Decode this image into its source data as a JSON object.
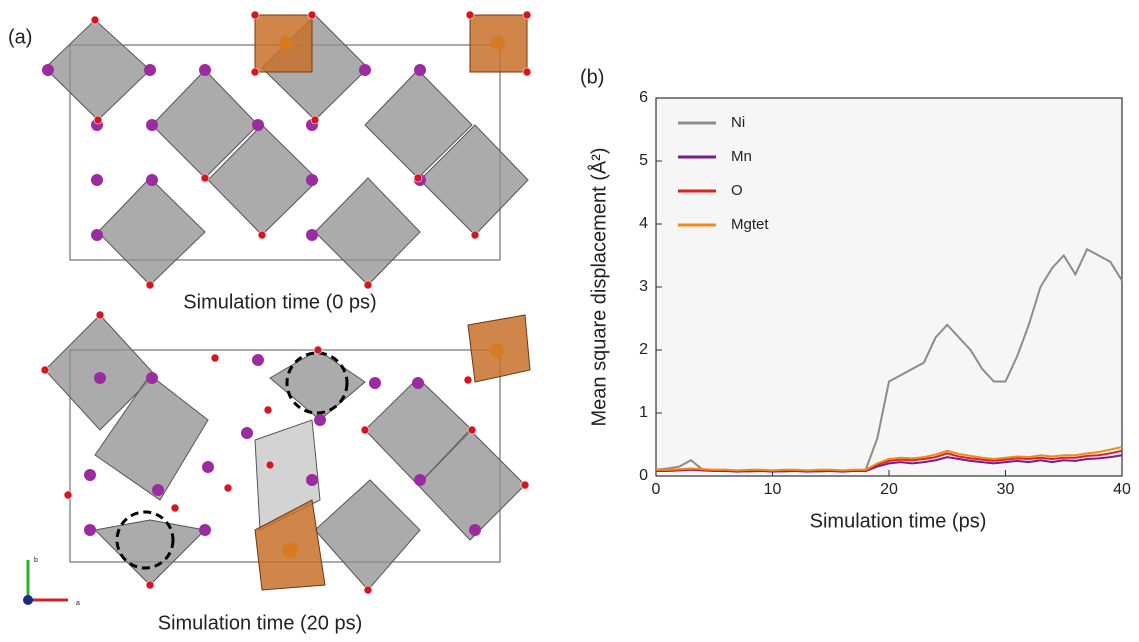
{
  "panel_a": {
    "label": "(a)",
    "captions": [
      "Simulation time (0 ps)",
      "Simulation time (20 ps)"
    ],
    "axes": [
      "b",
      "a"
    ]
  },
  "panel_b_label": "(b)",
  "chart_data": {
    "type": "line",
    "xlabel": "Simulation time (ps)",
    "ylabel": "Mean square displacement (Å²)",
    "x": [
      0,
      1,
      2,
      3,
      4,
      5,
      6,
      7,
      8,
      9,
      10,
      11,
      12,
      13,
      14,
      15,
      16,
      17,
      18,
      19,
      20,
      21,
      22,
      23,
      24,
      25,
      26,
      27,
      28,
      29,
      30,
      31,
      32,
      33,
      34,
      35,
      36,
      37,
      38,
      39,
      40
    ],
    "xlim": [
      0,
      40
    ],
    "xticks": [
      0,
      10,
      20,
      30,
      40
    ],
    "ylim": [
      0,
      6
    ],
    "yticks": [
      0,
      1,
      2,
      3,
      4,
      5,
      6
    ],
    "legend": "upper left",
    "series": [
      {
        "name": "Ni",
        "color": "#8c8c8c",
        "values": [
          0.1,
          0.12,
          0.15,
          0.25,
          0.1,
          0.09,
          0.08,
          0.08,
          0.07,
          0.08,
          0.08,
          0.07,
          0.08,
          0.08,
          0.07,
          0.08,
          0.08,
          0.09,
          0.1,
          0.6,
          1.5,
          1.6,
          1.7,
          1.8,
          2.2,
          2.4,
          2.2,
          2.0,
          1.7,
          1.5,
          1.5,
          1.9,
          2.4,
          3.0,
          3.3,
          3.5,
          3.2,
          3.6,
          3.5,
          3.4,
          3.1
        ]
      },
      {
        "name": "Mn",
        "color": "#7a1a8c",
        "values": [
          0.08,
          0.08,
          0.09,
          0.1,
          0.09,
          0.08,
          0.08,
          0.07,
          0.08,
          0.08,
          0.07,
          0.08,
          0.08,
          0.07,
          0.08,
          0.08,
          0.07,
          0.08,
          0.08,
          0.15,
          0.2,
          0.22,
          0.2,
          0.22,
          0.25,
          0.3,
          0.27,
          0.24,
          0.22,
          0.2,
          0.22,
          0.24,
          0.22,
          0.25,
          0.22,
          0.25,
          0.24,
          0.27,
          0.28,
          0.3,
          0.33
        ]
      },
      {
        "name": "O",
        "color": "#e0201c",
        "values": [
          0.09,
          0.09,
          0.1,
          0.11,
          0.1,
          0.09,
          0.09,
          0.08,
          0.09,
          0.09,
          0.08,
          0.09,
          0.09,
          0.08,
          0.09,
          0.09,
          0.08,
          0.09,
          0.09,
          0.18,
          0.24,
          0.26,
          0.25,
          0.27,
          0.3,
          0.36,
          0.31,
          0.28,
          0.26,
          0.24,
          0.26,
          0.28,
          0.27,
          0.29,
          0.27,
          0.29,
          0.29,
          0.32,
          0.33,
          0.36,
          0.4
        ]
      },
      {
        "name": "Mgtet",
        "color": "#f08a1e",
        "values": [
          0.1,
          0.1,
          0.11,
          0.12,
          0.11,
          0.1,
          0.1,
          0.09,
          0.1,
          0.1,
          0.09,
          0.1,
          0.1,
          0.09,
          0.1,
          0.1,
          0.09,
          0.1,
          0.1,
          0.2,
          0.27,
          0.29,
          0.28,
          0.3,
          0.34,
          0.4,
          0.35,
          0.32,
          0.29,
          0.27,
          0.29,
          0.31,
          0.3,
          0.33,
          0.31,
          0.33,
          0.33,
          0.36,
          0.38,
          0.42,
          0.46
        ]
      }
    ]
  }
}
